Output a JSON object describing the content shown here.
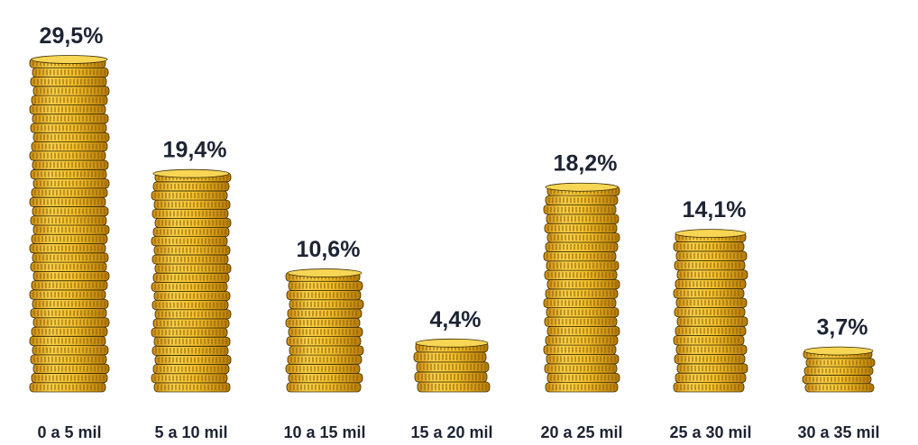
{
  "chart_data": {
    "type": "bar",
    "style": "stacked-coins pictograph",
    "categories": [
      "0 a 5 mil",
      "5 a 10 mil",
      "10 a 15 mil",
      "15 a 20 mil",
      "20 a 25 mil",
      "25 a 30 mil",
      "30 a 35 mil"
    ],
    "values": [
      29.5,
      19.4,
      10.6,
      4.4,
      18.2,
      14.1,
      3.7
    ],
    "value_labels": [
      "29,5%",
      "19,4%",
      "10,6%",
      "4,4%",
      "18,2%",
      "14,1%",
      "3,7%"
    ],
    "title": "",
    "xlabel": "",
    "ylabel": "",
    "grid": false,
    "legend": "none",
    "colors": {
      "coin_face": "#f2c12e",
      "coin_edge": "#d99b18",
      "coin_dark": "#8a5a00",
      "outline": "#3a2a00",
      "text": "#1c2333"
    }
  }
}
